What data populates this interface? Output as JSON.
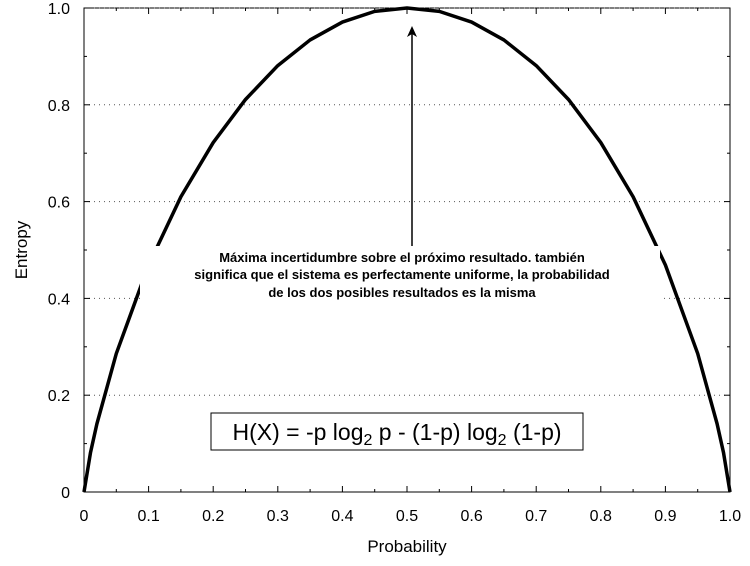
{
  "chart_data": {
    "type": "line",
    "title": "",
    "xlabel": "Probability",
    "ylabel": "Entropy",
    "xlim": [
      0,
      1
    ],
    "ylim": [
      0,
      1
    ],
    "x_ticks": [
      "0",
      "0.1",
      "0.2",
      "0.3",
      "0.4",
      "0.5",
      "0.6",
      "0.7",
      "0.8",
      "0.9",
      "1.0"
    ],
    "y_ticks": [
      "0",
      "0.2",
      "0.4",
      "0.6",
      "0.8",
      "1.0"
    ],
    "grid": "horizontal-dotted",
    "series": [
      {
        "x": [
          0.0,
          0.01,
          0.02,
          0.05,
          0.1,
          0.15,
          0.2,
          0.25,
          0.3,
          0.35,
          0.4,
          0.45,
          0.5,
          0.55,
          0.6,
          0.65,
          0.7,
          0.75,
          0.8,
          0.85,
          0.9,
          0.95,
          0.98,
          0.99,
          1.0
        ],
        "values": [
          0.0,
          0.081,
          0.141,
          0.286,
          0.469,
          0.61,
          0.722,
          0.811,
          0.881,
          0.934,
          0.971,
          0.993,
          1.0,
          0.993,
          0.971,
          0.934,
          0.881,
          0.811,
          0.722,
          0.61,
          0.469,
          0.286,
          0.141,
          0.081,
          0.0
        ]
      }
    ],
    "annotations": {
      "arrow_text": [
        "Máxima incertidumbre sobre el próximo resultado. también",
        "significa que el sistema es perfectamente uniforme, la probabilidad",
        "de los dos posibles resultados es la misma"
      ],
      "arrow_from": [
        0.5,
        0.5
      ],
      "arrow_to": [
        0.5,
        1.0
      ],
      "formula": {
        "p1": "H(X) = -p log",
        "sub1": "2",
        "p2": " p - (1-p) log",
        "sub2": "2",
        "p3": " (1-p)"
      }
    }
  }
}
